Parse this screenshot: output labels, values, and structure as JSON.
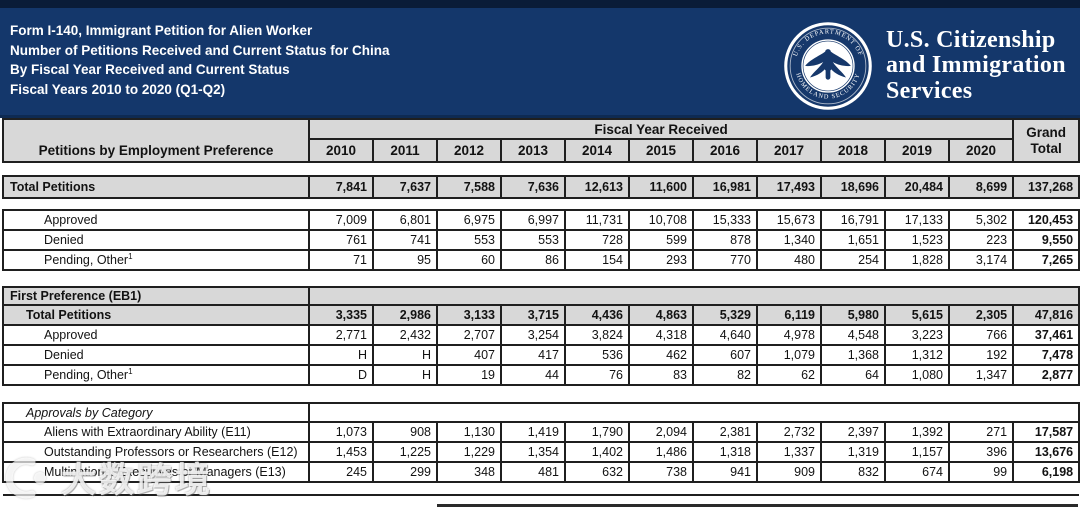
{
  "colors": {
    "banner_navy": "#14376b",
    "banner_top_band": "#0a1c38",
    "table_gray": "#d8d8d8",
    "border_dark": "#1f1f1f"
  },
  "banner": {
    "title_lines": [
      "Form I-140, Immigrant Petition for Alien Worker",
      "Number of Petitions Received and Current Status for China",
      "By Fiscal Year Received and Current Status",
      "Fiscal Years 2010 to 2020 (Q1-Q2)"
    ],
    "agency_name_lines": [
      "U.S. Citizenship",
      "and Immigration",
      "Services"
    ],
    "seal_text_top": "U.S. DEPARTMENT OF",
    "seal_text_bottom": "HOMELAND SECURITY"
  },
  "table": {
    "row_label_header": "Petitions by Employment Preference",
    "year_group_header": "Fiscal Year Received",
    "grand_total_header": [
      "Grand",
      "Total"
    ],
    "years": [
      "2010",
      "2011",
      "2012",
      "2013",
      "2014",
      "2015",
      "2016",
      "2017",
      "2018",
      "2019",
      "2020"
    ],
    "rows": [
      {
        "type": "spacer",
        "h": 14
      },
      {
        "type": "total",
        "level": 0,
        "label": "Total Petitions",
        "values": [
          "7,841",
          "7,637",
          "7,588",
          "7,636",
          "12,613",
          "11,600",
          "16,981",
          "17,493",
          "18,696",
          "20,484",
          "8,699"
        ],
        "grand": "137,268"
      },
      {
        "type": "spacer",
        "h": 12
      },
      {
        "type": "detail",
        "level": 2,
        "label": "Approved",
        "values": [
          "7,009",
          "6,801",
          "6,975",
          "6,997",
          "11,731",
          "10,708",
          "15,333",
          "15,673",
          "16,791",
          "17,133",
          "5,302"
        ],
        "grand": "120,453"
      },
      {
        "type": "detail",
        "level": 2,
        "label": "Denied",
        "values": [
          "761",
          "741",
          "553",
          "553",
          "728",
          "599",
          "878",
          "1,340",
          "1,651",
          "1,523",
          "223"
        ],
        "grand": "9,550"
      },
      {
        "type": "detail",
        "level": 2,
        "label": "Pending, Other",
        "footnote": "1",
        "values": [
          "71",
          "95",
          "60",
          "86",
          "154",
          "293",
          "770",
          "480",
          "254",
          "1,828",
          "3,174"
        ],
        "grand": "7,265"
      },
      {
        "type": "spacer",
        "h": 17
      },
      {
        "type": "section",
        "level": 0,
        "label": "First Preference (EB1)"
      },
      {
        "type": "subtotal",
        "level": 1,
        "label": "Total Petitions",
        "values": [
          "3,335",
          "2,986",
          "3,133",
          "3,715",
          "4,436",
          "4,863",
          "5,329",
          "6,119",
          "5,980",
          "5,615",
          "2,305"
        ],
        "grand": "47,816"
      },
      {
        "type": "detail",
        "level": 2,
        "label": "Approved",
        "values": [
          "2,771",
          "2,432",
          "2,707",
          "3,254",
          "3,824",
          "4,318",
          "4,640",
          "4,978",
          "4,548",
          "3,223",
          "766"
        ],
        "grand": "37,461"
      },
      {
        "type": "detail",
        "level": 2,
        "label": "Denied",
        "values": [
          "H",
          "H",
          "407",
          "417",
          "536",
          "462",
          "607",
          "1,079",
          "1,368",
          "1,312",
          "192"
        ],
        "grand": "7,478"
      },
      {
        "type": "detail",
        "level": 2,
        "label": "Pending, Other",
        "footnote": "1",
        "values": [
          "D",
          "H",
          "19",
          "44",
          "76",
          "83",
          "82",
          "62",
          "64",
          "1,080",
          "1,347"
        ],
        "grand": "2,877"
      },
      {
        "type": "spacer",
        "h": 18
      },
      {
        "type": "subsection",
        "level": 1,
        "label": "Approvals by Category"
      },
      {
        "type": "detail",
        "level": 2,
        "label": "Aliens with Extraordinary Ability (E11)",
        "values": [
          "1,073",
          "908",
          "1,130",
          "1,419",
          "1,790",
          "2,094",
          "2,381",
          "2,732",
          "2,397",
          "1,392",
          "271"
        ],
        "grand": "17,587"
      },
      {
        "type": "detail",
        "level": 2,
        "label": "Outstanding Professors or Researchers (E12)",
        "values": [
          "1,453",
          "1,225",
          "1,229",
          "1,354",
          "1,402",
          "1,486",
          "1,318",
          "1,337",
          "1,319",
          "1,157",
          "396"
        ],
        "grand": "13,676"
      },
      {
        "type": "detail",
        "level": 2,
        "label": "Multinational Executives or Managers (E13)",
        "values": [
          "245",
          "299",
          "348",
          "481",
          "632",
          "738",
          "941",
          "909",
          "832",
          "674",
          "99"
        ],
        "grand": "6,198"
      },
      {
        "type": "spacer",
        "h": 13
      }
    ]
  },
  "watermark": {
    "text": "大数跨境"
  }
}
